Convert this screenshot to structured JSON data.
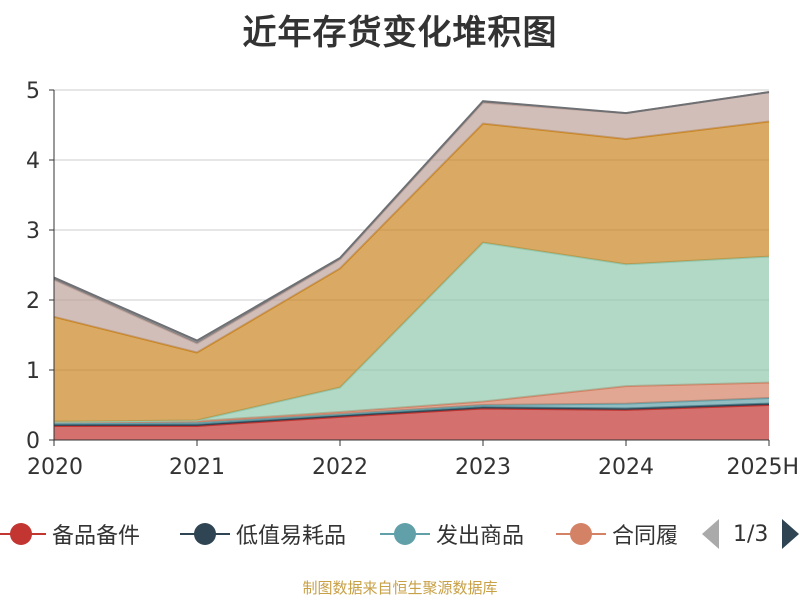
{
  "title": "近年存货变化堆积图",
  "source": "制图数据来自恒生聚源数据库",
  "pager": {
    "text": "1/3",
    "prev_icon": "triangle-left-icon",
    "next_icon": "triangle-right-icon"
  },
  "legend": [
    {
      "label": "备品备件",
      "color": "#c23531"
    },
    {
      "label": "低值易耗品",
      "color": "#2f4554"
    },
    {
      "label": "发出商品",
      "color": "#61a0a8"
    },
    {
      "label": "合同履",
      "color": "#d48265"
    }
  ],
  "chart_data": {
    "type": "area",
    "stacked": true,
    "title": "近年存货变化堆积图",
    "categories": [
      "2020",
      "2021",
      "2022",
      "2023",
      "2024",
      "2025H"
    ],
    "ylim": [
      0,
      5
    ],
    "yticks": [
      0,
      1,
      2,
      3,
      4,
      5
    ],
    "grid": true,
    "series": [
      {
        "name": "备品备件",
        "color": "#c23531",
        "values": [
          0.2,
          0.2,
          0.33,
          0.45,
          0.43,
          0.5
        ]
      },
      {
        "name": "低值易耗品",
        "color": "#2f4554",
        "values": [
          0.02,
          0.02,
          0.02,
          0.02,
          0.02,
          0.02
        ]
      },
      {
        "name": "发出商品",
        "color": "#61a0a8",
        "values": [
          0.02,
          0.03,
          0.02,
          0.03,
          0.07,
          0.08
        ]
      },
      {
        "name": "合同履",
        "color": "#d48265",
        "values": [
          0.02,
          0.02,
          0.03,
          0.05,
          0.25,
          0.22
        ]
      },
      {
        "color": "#91c7ae",
        "values": [
          0.0,
          0.01,
          0.35,
          2.27,
          1.74,
          1.8
        ]
      },
      {
        "color": "#ca8622",
        "values": [
          1.5,
          0.97,
          1.7,
          1.7,
          1.79,
          1.93
        ]
      },
      {
        "color": "#bda29a",
        "values": [
          0.53,
          0.13,
          0.13,
          0.3,
          0.37,
          0.42
        ]
      },
      {
        "color": "#6e7074",
        "values": [
          0.03,
          0.04,
          0.02,
          0.02,
          0.0,
          0.0
        ]
      }
    ]
  }
}
